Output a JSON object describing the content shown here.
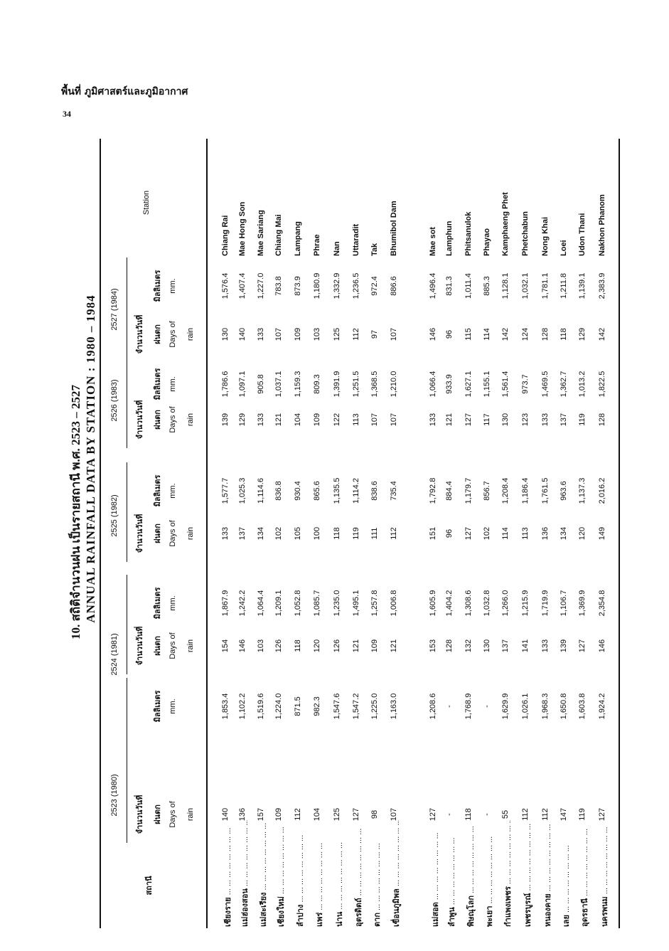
{
  "page": {
    "running_head": "พื้นที่ ภูมิศาสตร์และภูมิอากาศ",
    "page_number": "34"
  },
  "title": {
    "thai": "10.  สถิติจำนวนฝน เป็นรายสถานี พ.ศ. 2523 – 2527",
    "english": "ANNUAL RAINFALL DATA BY STATION : 1980 – 1984"
  },
  "header": {
    "station_thai": "สถานี",
    "station_english": "Station",
    "days_thai_1": "จำนวนวันที่",
    "days_thai_2": "ฝนตก",
    "days_en_1": "Days of",
    "days_en_2": "rain",
    "mm_thai": "มิลลิเมตร",
    "mm_en": "mm.",
    "years": [
      "2523 (1980)",
      "2524 (1981)",
      "2525 (1982)",
      "2526 (1983)",
      "2527 (1984)"
    ]
  },
  "rows": [
    {
      "thai": "เชียงราย",
      "english": "Chiang Rai",
      "values": [
        "140",
        "1,853.4",
        "154",
        "1,867.9",
        "133",
        "1,577.7",
        "139",
        "1,786.6",
        "130",
        "1,576.4"
      ]
    },
    {
      "thai": "แม่ฮ่องสอน",
      "english": "Mae Hong Son",
      "values": [
        "136",
        "1,102.2",
        "146",
        "1,242.2",
        "137",
        "1,025.3",
        "129",
        "1,097.1",
        "140",
        "1,407.4"
      ]
    },
    {
      "thai": "แม่สะเรียง",
      "english": "Mae Sariang",
      "values": [
        "157",
        "1,519.6",
        "103",
        "1,064.4",
        "134",
        "1,114.6",
        "133",
        "905.8",
        "133",
        "1,227.0"
      ]
    },
    {
      "thai": "เชียงใหม่",
      "english": "Chiang Mai",
      "values": [
        "109",
        "1,224.0",
        "126",
        "1,209.1",
        "102",
        "836.8",
        "121",
        "1,037.1",
        "107",
        "783.8"
      ]
    },
    {
      "thai": "ลำปาง",
      "english": "Lampang",
      "values": [
        "112",
        "871.5",
        "118",
        "1,052.8",
        "105",
        "930.4",
        "104",
        "1,159.3",
        "109",
        "873.9"
      ]
    },
    {
      "thai": "แพร่",
      "english": "Phrae",
      "values": [
        "104",
        "982.3",
        "120",
        "1,085.7",
        "100",
        "865.6",
        "109",
        "809.3",
        "103",
        "1,180.9"
      ]
    },
    {
      "thai": "น่าน",
      "english": "Nan",
      "values": [
        "125",
        "1,547.6",
        "126",
        "1,235.0",
        "118",
        "1,135.5",
        "122",
        "1,391.9",
        "125",
        "1,332.9"
      ]
    },
    {
      "thai": "อุตรดิตถ์",
      "english": "Uttaradit",
      "values": [
        "127",
        "1,547.2",
        "121",
        "1,495.1",
        "119",
        "1,114.2",
        "113",
        "1,251.5",
        "112",
        "1,236.5"
      ]
    },
    {
      "thai": "ตาก",
      "english": "Tak",
      "values": [
        "98",
        "1,225.0",
        "109",
        "1,257.8",
        "111",
        "838.6",
        "107",
        "1,368.5",
        "97",
        "972.4"
      ]
    },
    {
      "thai": "เขื่อนภูมิพล",
      "english": "Bhumibol Dam",
      "values": [
        "107",
        "1,163.0",
        "121",
        "1,006.8",
        "112",
        "735.4",
        "107",
        "1,210.0",
        "107",
        "886.6"
      ]
    },
    {
      "thai": "แม่สอด",
      "english": "Mae sot",
      "values": [
        "127",
        "1,208.6",
        "153",
        "1,605.9",
        "151",
        "1,792.8",
        "133",
        "1,066.4",
        "146",
        "1,496.4"
      ]
    },
    {
      "thai": "ลำพูน",
      "english": "Lamphun",
      "values": [
        "-",
        "-",
        "128",
        "1,404.2",
        "96",
        "884.4",
        "121",
        "933.9",
        "96",
        "831.3"
      ]
    },
    {
      "thai": "พิษณุโลก",
      "english": "Phitsanulok",
      "values": [
        "118",
        "1,768.9",
        "132",
        "1,308.6",
        "127",
        "1,179.7",
        "127",
        "1,627.1",
        "115",
        "1,011.4"
      ]
    },
    {
      "thai": "พะเยา",
      "english": "Phayao",
      "values": [
        "-",
        "-",
        "130",
        "1,032.8",
        "102",
        "856.7",
        "117",
        "1,155.1",
        "114",
        "885.3"
      ]
    },
    {
      "thai": "กำแพงเพชร",
      "english": "Kamphaeng Phet",
      "values": [
        "55",
        "1,629.9",
        "137",
        "1,266.0",
        "114",
        "1,208.4",
        "130",
        "1,561.4",
        "142",
        "1,128.1"
      ]
    },
    {
      "thai": "เพชรบูรณ์",
      "english": "Phetchabun",
      "values": [
        "112",
        "1,026.1",
        "141",
        "1,215.9",
        "113",
        "1,186.4",
        "123",
        "973.7",
        "124",
        "1,032.1"
      ]
    },
    {
      "thai": "หนองคาย",
      "english": "Nong Khai",
      "values": [
        "112",
        "1,968.3",
        "133",
        "1,719.9",
        "136",
        "1,761.5",
        "133",
        "1,469.5",
        "128",
        "1,781.1"
      ]
    },
    {
      "thai": "เลย",
      "english": "Loei",
      "values": [
        "147",
        "1,650.8",
        "139",
        "1,106.7",
        "134",
        "963.6",
        "137",
        "1,362.7",
        "118",
        "1,211.8"
      ]
    },
    {
      "thai": "อุดรธานี",
      "english": "Udon Thani",
      "values": [
        "119",
        "1,603.8",
        "127",
        "1,369.9",
        "120",
        "1,137.3",
        "119",
        "1,013.2",
        "129",
        "1,139.1"
      ]
    },
    {
      "thai": "นครพนม",
      "english": "Nakhon Phanom",
      "values": [
        "127",
        "1,924.2",
        "146",
        "2,354.8",
        "149",
        "2,016.2",
        "128",
        "1,822.5",
        "142",
        "2,383.9"
      ]
    }
  ]
}
